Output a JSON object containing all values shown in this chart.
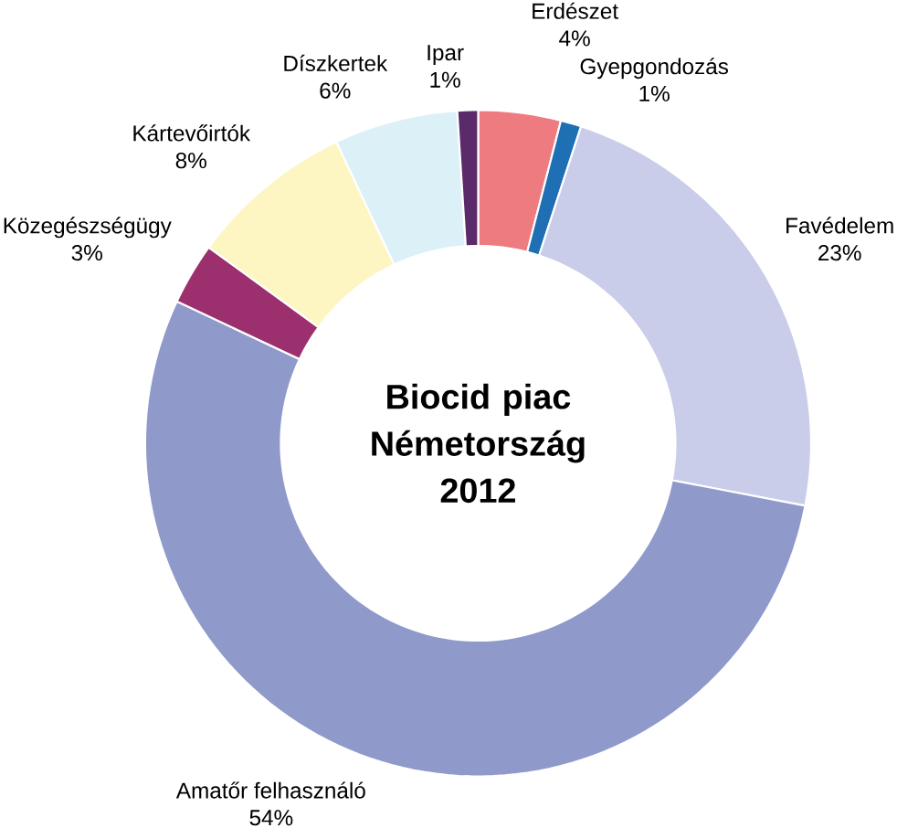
{
  "chart_data": {
    "type": "donut",
    "title": "Biocid piac Németország 2012",
    "categories": [
      "Erdészet",
      "Gyepgondozás",
      "Favédelem",
      "Amatőr felhasználó",
      "Közegészségügy",
      "Kártevőirtók",
      "Díszkertek",
      "Ipar"
    ],
    "values": [
      4,
      1,
      23,
      54,
      3,
      8,
      6,
      1
    ],
    "value_labels": [
      "4%",
      "1%",
      "23%",
      "54%",
      "3%",
      "8%",
      "6%",
      "1%"
    ],
    "colors": [
      "#ee7b80",
      "#1f6fb5",
      "#c9cdea",
      "#8f9acb",
      "#9c2f6e",
      "#fdf6c2",
      "#dcf0f7",
      "#5a2a6a"
    ]
  }
}
